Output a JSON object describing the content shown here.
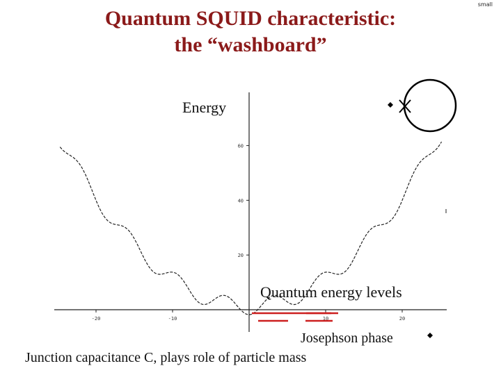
{
  "corner_label": "small",
  "title": [
    "Quantum SQUID characteristic:",
    "the “washboard”"
  ],
  "labels": {
    "energy": "Energy",
    "quantum_levels": "Quantum energy levels",
    "phase": "Josephson phase",
    "mass": "Junction capacitance C, plays role of particle mass"
  },
  "colors": {
    "title": "#8b1a1a",
    "levels": "#cc1f1f",
    "curve": "#222222"
  },
  "chart_data": {
    "type": "line",
    "x_ticks": [
      "-20",
      "-10",
      "10",
      "20"
    ],
    "y_ticks": [
      "20",
      "40",
      "60"
    ],
    "xlim": [
      -25,
      25
    ],
    "ylim": [
      -2,
      80
    ],
    "curve": {
      "style": "dashed",
      "description_values": "washboard potential U(phi) = 0.1*phi^2 - 3*cos(phi)"
    },
    "energy_levels": [
      {
        "min": "left",
        "level": 1
      },
      {
        "min": "right",
        "level": 1
      }
    ]
  }
}
